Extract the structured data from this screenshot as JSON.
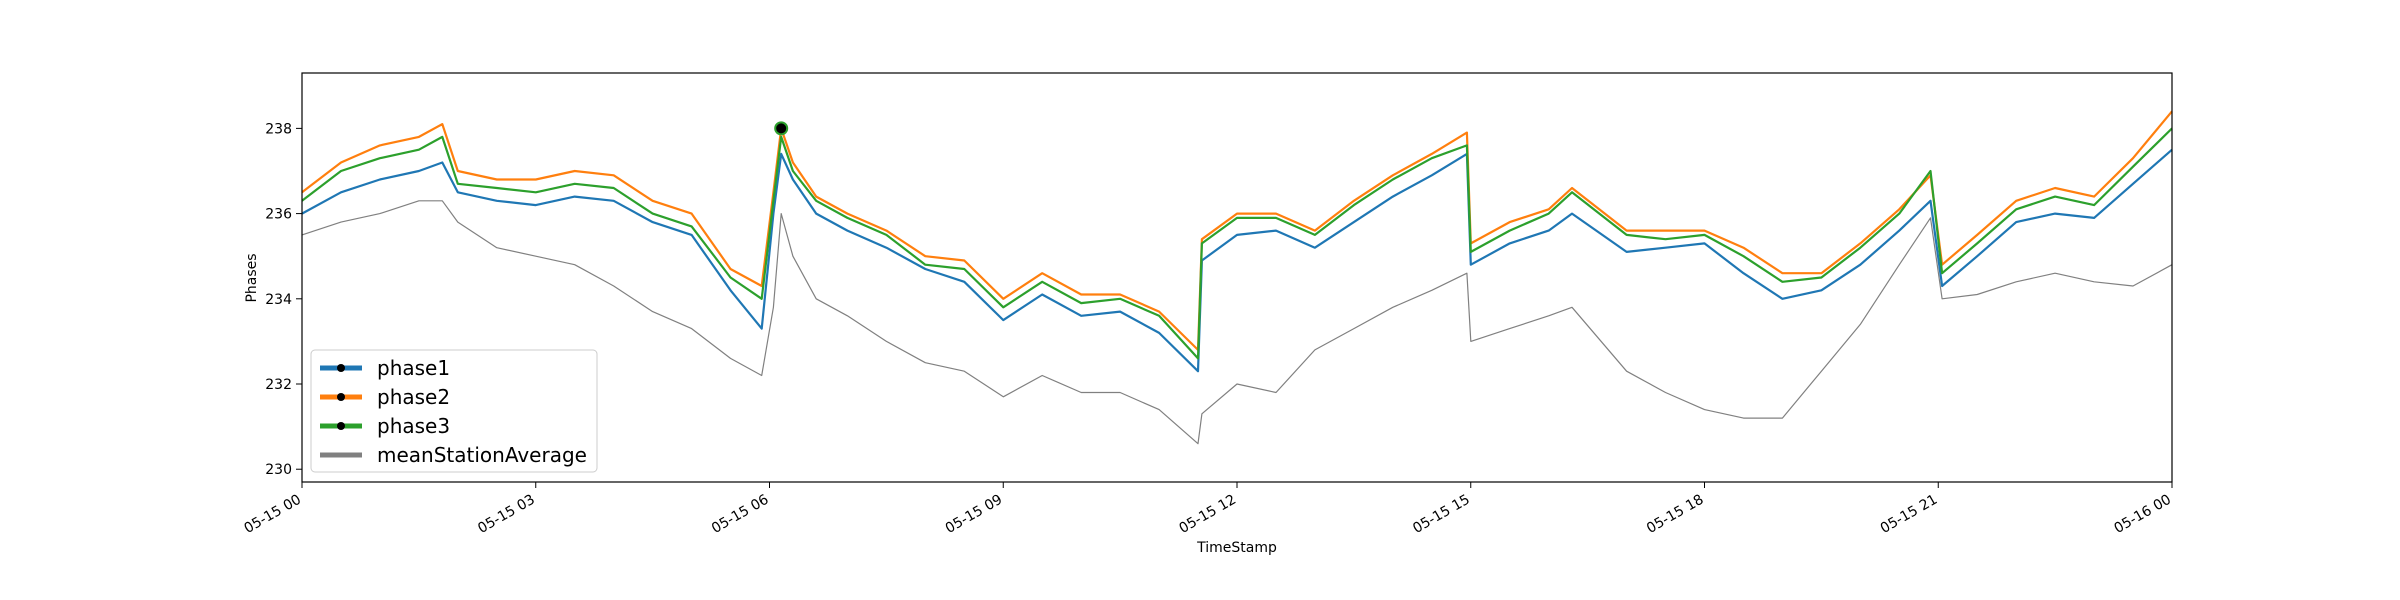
{
  "chart_data": {
    "type": "line",
    "xlabel": "TimeStamp",
    "ylabel": "Phases",
    "xlim": [
      "05-15 00:00",
      "05-16 00:00"
    ],
    "ylim": [
      229.7,
      239.3
    ],
    "x_ticks": [
      "05-15 00",
      "05-15 03",
      "05-15 06",
      "05-15 09",
      "05-15 12",
      "05-15 15",
      "05-15 18",
      "05-15 21",
      "05-16 00"
    ],
    "y_ticks": [
      "230",
      "232",
      "234",
      "236",
      "238"
    ],
    "y_tick_values": [
      230,
      232,
      234,
      236,
      238
    ],
    "legend_position": "lower-left",
    "x_hours": [
      0,
      0.5,
      1,
      1.5,
      1.8,
      2,
      2.5,
      3,
      3.5,
      4,
      4.5,
      5,
      5.5,
      5.9,
      6.05,
      6.15,
      6.3,
      6.6,
      7,
      7.5,
      8,
      8.5,
      9,
      9.5,
      10,
      10.5,
      11,
      11.5,
      11.55,
      12,
      12.5,
      13,
      13.5,
      14,
      14.5,
      14.95,
      15,
      15.5,
      16,
      16.3,
      17,
      17.5,
      18,
      18.5,
      19,
      19.5,
      20,
      20.5,
      20.9,
      21.05,
      21.5,
      22,
      22.5,
      23,
      23.5,
      24
    ],
    "series": [
      {
        "name": "phase1",
        "color": "#1f77b4",
        "values": [
          236.0,
          236.5,
          236.8,
          237.0,
          237.2,
          236.5,
          236.3,
          236.2,
          236.4,
          236.3,
          235.8,
          235.5,
          234.2,
          233.3,
          236.0,
          237.4,
          236.8,
          236.0,
          235.6,
          235.2,
          234.7,
          234.4,
          233.5,
          234.1,
          233.6,
          233.7,
          233.2,
          232.3,
          234.9,
          235.5,
          235.6,
          235.2,
          235.8,
          236.4,
          236.9,
          237.4,
          234.8,
          235.3,
          235.6,
          236.0,
          235.1,
          235.2,
          235.3,
          234.6,
          234.0,
          234.2,
          234.8,
          235.6,
          236.3,
          234.3,
          235.0,
          235.8,
          236.0,
          235.9,
          236.7,
          237.5
        ]
      },
      {
        "name": "phase2",
        "color": "#ff7f0e",
        "values": [
          236.5,
          237.2,
          237.6,
          237.8,
          238.1,
          237.0,
          236.8,
          236.8,
          237.0,
          236.9,
          236.3,
          236.0,
          234.7,
          234.3,
          236.5,
          238.0,
          237.2,
          236.4,
          236.0,
          235.6,
          235.0,
          234.9,
          234.0,
          234.6,
          234.1,
          234.1,
          233.7,
          232.8,
          235.4,
          236.0,
          236.0,
          235.6,
          236.3,
          236.9,
          237.4,
          237.9,
          235.3,
          235.8,
          236.1,
          236.6,
          235.6,
          235.6,
          235.6,
          235.2,
          234.6,
          234.6,
          235.3,
          236.1,
          236.9,
          234.8,
          235.5,
          236.3,
          236.6,
          236.4,
          237.3,
          238.4
        ]
      },
      {
        "name": "phase3",
        "color": "#2ca02c",
        "values": [
          236.3,
          237.0,
          237.3,
          237.5,
          237.8,
          236.7,
          236.6,
          236.5,
          236.7,
          236.6,
          236.0,
          235.7,
          234.5,
          234.0,
          236.3,
          237.8,
          237.0,
          236.3,
          235.9,
          235.5,
          234.8,
          234.7,
          233.8,
          234.4,
          233.9,
          234.0,
          233.6,
          232.6,
          235.3,
          235.9,
          235.9,
          235.5,
          236.2,
          236.8,
          237.3,
          237.6,
          235.1,
          235.6,
          236.0,
          236.5,
          235.5,
          235.4,
          235.5,
          235.0,
          234.4,
          234.5,
          235.2,
          236.0,
          237.0,
          234.6,
          235.3,
          236.1,
          236.4,
          236.2,
          237.1,
          238.0
        ]
      },
      {
        "name": "meanStationAverage",
        "color": "#808080",
        "values": [
          235.5,
          235.8,
          236.0,
          236.3,
          236.3,
          235.8,
          235.2,
          235.0,
          234.8,
          234.3,
          233.7,
          233.3,
          232.6,
          232.2,
          233.8,
          236.0,
          235.0,
          234.0,
          233.6,
          233.0,
          232.5,
          232.3,
          231.7,
          232.2,
          231.8,
          231.8,
          231.4,
          230.6,
          231.3,
          232.0,
          231.8,
          232.8,
          233.3,
          233.8,
          234.2,
          234.6,
          233.0,
          233.3,
          233.6,
          233.8,
          232.3,
          231.8,
          231.4,
          231.2,
          231.2,
          232.3,
          233.4,
          234.8,
          235.9,
          234.0,
          234.1,
          234.4,
          234.6,
          234.4,
          234.3,
          234.8
        ]
      }
    ],
    "highlight_point": {
      "x_hour": 6.15,
      "y": 238.0
    }
  }
}
